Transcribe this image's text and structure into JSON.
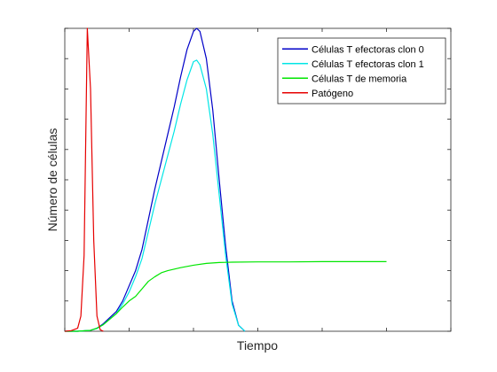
{
  "chart_data": {
    "type": "line",
    "title": "",
    "xlabel": "Tiempo",
    "ylabel": "Número de células",
    "x_tick_labels_shown": false,
    "y_tick_labels_shown": false,
    "xlim": [
      0,
      60
    ],
    "ylim": [
      0,
      1
    ],
    "grid": false,
    "legend_position": "top-right",
    "series": [
      {
        "name": "Células T efectoras clon 0",
        "color": "#0000c8",
        "x": [
          0,
          2,
          4,
          5,
          6,
          7,
          8,
          9,
          10,
          11,
          12,
          13,
          14,
          15,
          16,
          17,
          18,
          19,
          20,
          20.5,
          21,
          22,
          23,
          24,
          25,
          26,
          27,
          28
        ],
        "y": [
          0,
          0,
          0.003,
          0.01,
          0.025,
          0.045,
          0.065,
          0.1,
          0.15,
          0.2,
          0.27,
          0.37,
          0.47,
          0.56,
          0.65,
          0.74,
          0.84,
          0.93,
          0.99,
          1.0,
          0.99,
          0.9,
          0.73,
          0.5,
          0.28,
          0.1,
          0.02,
          0
        ]
      },
      {
        "name": "Células T efectoras clon 1",
        "color": "#00e6e6",
        "x": [
          0,
          2,
          4,
          5,
          6,
          7,
          8,
          9,
          10,
          11,
          12,
          13,
          14,
          15,
          16,
          17,
          18,
          19,
          20,
          20.5,
          21,
          22,
          23,
          24,
          25,
          26,
          27,
          28
        ],
        "y": [
          0,
          0,
          0.003,
          0.009,
          0.022,
          0.04,
          0.058,
          0.09,
          0.13,
          0.18,
          0.24,
          0.33,
          0.42,
          0.5,
          0.58,
          0.66,
          0.75,
          0.83,
          0.89,
          0.895,
          0.88,
          0.8,
          0.65,
          0.45,
          0.25,
          0.09,
          0.02,
          0
        ]
      },
      {
        "name": "Células T de memoria",
        "color": "#00e600",
        "x": [
          0,
          2,
          4,
          5,
          6,
          7,
          8,
          9,
          10,
          11,
          12,
          13,
          14,
          15,
          16,
          18,
          20,
          22,
          24,
          26,
          30,
          35,
          40,
          45,
          50
        ],
        "y": [
          0,
          0,
          0.003,
          0.01,
          0.022,
          0.04,
          0.058,
          0.08,
          0.1,
          0.115,
          0.14,
          0.165,
          0.18,
          0.193,
          0.2,
          0.21,
          0.218,
          0.224,
          0.227,
          0.228,
          0.229,
          0.229,
          0.23,
          0.23,
          0.23
        ]
      },
      {
        "name": "Patógeno",
        "color": "#e60000",
        "x": [
          0,
          1,
          2,
          2.5,
          3,
          3.5,
          4,
          4.5,
          5,
          5.5,
          6
        ],
        "y": [
          0,
          0.002,
          0.01,
          0.05,
          0.25,
          1.0,
          0.8,
          0.3,
          0.05,
          0.005,
          0
        ]
      }
    ]
  }
}
